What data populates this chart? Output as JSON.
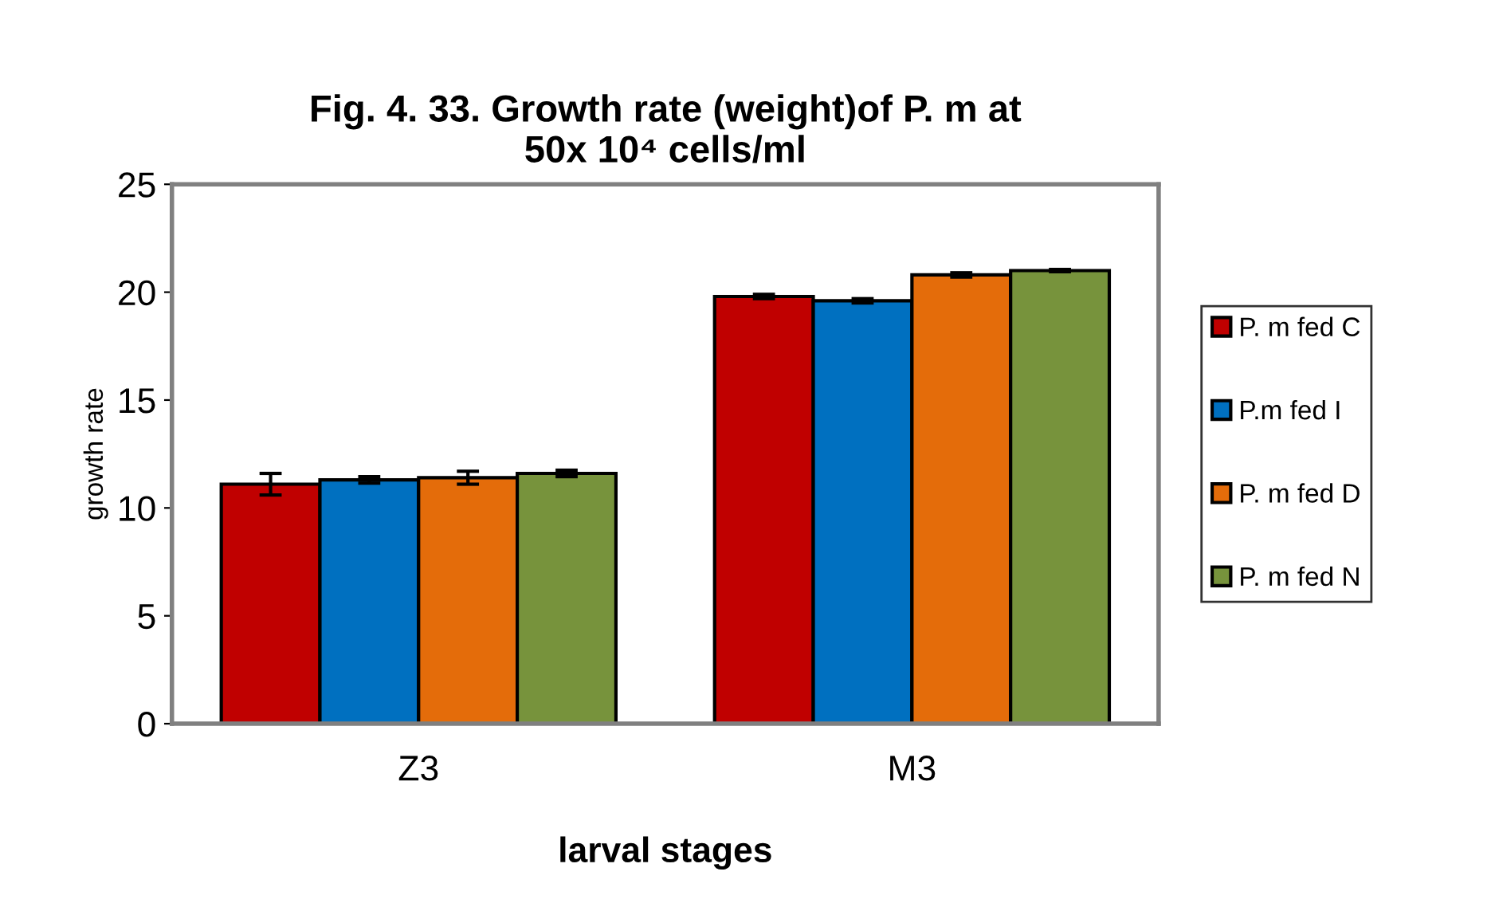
{
  "chart_data": {
    "type": "bar",
    "title": "Fig. 4. 33. Growth rate (weight)of P. m at\n50x 10⁴ cells/ml",
    "xlabel": "larval stages",
    "ylabel": "growth rate",
    "categories": [
      "Z3",
      "M3"
    ],
    "series": [
      {
        "name": "P. m fed C",
        "color": "#c00000",
        "values": [
          11.1,
          19.8
        ],
        "errors": [
          0.5,
          0.1
        ]
      },
      {
        "name": "P.m fed I",
        "color": "#0070c0",
        "values": [
          11.3,
          19.6
        ],
        "errors": [
          0.15,
          0.1
        ]
      },
      {
        "name": "P. m fed D",
        "color": "#e46c0a",
        "values": [
          11.4,
          20.8
        ],
        "errors": [
          0.3,
          0.1
        ]
      },
      {
        "name": "P. m fed N",
        "color": "#77933c",
        "values": [
          11.6,
          21.0
        ],
        "errors": [
          0.15,
          0.05
        ]
      }
    ],
    "ylim": [
      0,
      25
    ],
    "yticks": [
      0,
      5,
      10,
      15,
      20,
      25
    ],
    "grid": false,
    "legend": "right"
  }
}
